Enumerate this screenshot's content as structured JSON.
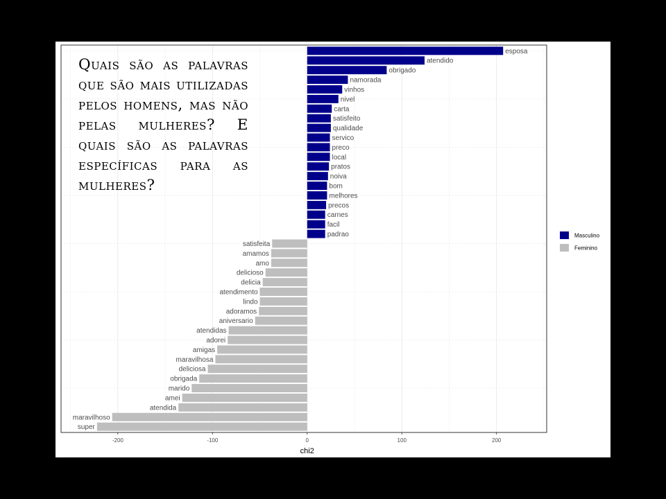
{
  "annotation": "Quais são as palavras que são mais utilizadas pelos homens, mas não pelas mulheres? E quais são as palavras específicas para as mulheres?",
  "chart_data": {
    "type": "bar",
    "orientation": "horizontal",
    "title": "",
    "xlabel": "chi2",
    "ylabel": "",
    "xlim": [
      -260,
      253
    ],
    "xticks": [
      -200,
      -100,
      0,
      100,
      200
    ],
    "grid": true,
    "legend_position": "right",
    "colors": {
      "Masculino": "#00008b",
      "Feminino": "#bebebe"
    },
    "series": [
      {
        "name": "Masculino",
        "categories": [
          "esposa",
          "atendido",
          "obrigado",
          "namorada",
          "vinhos",
          "nivel",
          "carta",
          "satisfeito",
          "qualidade",
          "servico",
          "preco",
          "local",
          "pratos",
          "noiva",
          "bom",
          "melhores",
          "precos",
          "carnes",
          "facil",
          "padrao"
        ],
        "values": [
          207,
          124,
          84,
          43,
          37,
          33,
          26,
          25,
          25,
          24,
          24,
          24,
          23,
          22,
          21,
          21,
          20,
          19,
          19,
          19
        ]
      },
      {
        "name": "Feminino",
        "categories": [
          "satisfeita",
          "amamos",
          "amo",
          "delicioso",
          "delicia",
          "atendimento",
          "lindo",
          "adoramos",
          "aniversario",
          "atendidas",
          "adorei",
          "amigas",
          "maravilhosa",
          "deliciosa",
          "obrigada",
          "marido",
          "amei",
          "atendida",
          "maravilhoso",
          "super"
        ],
        "values": [
          -37,
          -38,
          -38,
          -44,
          -47,
          -50,
          -50,
          -51,
          -55,
          -83,
          -84,
          -95,
          -97,
          -105,
          -114,
          -122,
          -132,
          -136,
          -206,
          -222
        ]
      }
    ]
  }
}
